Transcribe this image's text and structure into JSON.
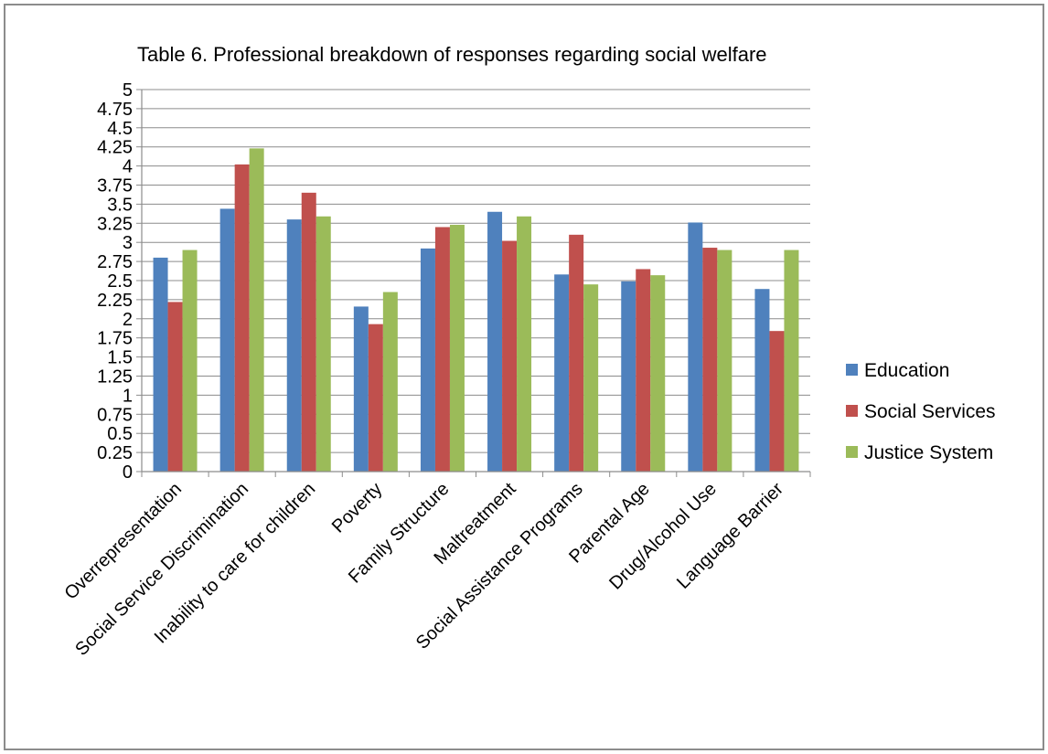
{
  "chart_data": {
    "type": "bar",
    "title": "Table 6.  Professional breakdown of responses regarding social welfare",
    "categories": [
      "Overrepresentation",
      "Social Service Discrimination",
      "Inability to care for children",
      "Poverty",
      "Family Structure",
      "Maltreatment",
      "Social Assistance Programs",
      "Parental Age",
      "Drug/Alcohol Use",
      "Language Barrier"
    ],
    "series": [
      {
        "name": "Education",
        "values": [
          2.8,
          3.44,
          3.3,
          2.16,
          2.92,
          3.4,
          2.58,
          2.49,
          3.26,
          2.39
        ]
      },
      {
        "name": "Social Services",
        "values": [
          2.22,
          4.02,
          3.65,
          1.93,
          3.2,
          3.02,
          3.1,
          2.65,
          2.93,
          1.84
        ]
      },
      {
        "name": "Justice System",
        "values": [
          2.9,
          4.23,
          3.34,
          2.35,
          3.23,
          3.34,
          2.45,
          2.57,
          2.9,
          2.9
        ]
      }
    ],
    "colors": [
      "#4F81BD",
      "#C0504D",
      "#9BBB59"
    ],
    "ylim": [
      0,
      5
    ],
    "yticks": [
      "0",
      "0.25",
      "0.5",
      "0.75",
      "1",
      "1.25",
      "1.5",
      "1.75",
      "2",
      "2.25",
      "2.5",
      "2.75",
      "3",
      "3.25",
      "3.5",
      "3.75",
      "4",
      "4.25",
      "4.5",
      "4.75",
      "5"
    ],
    "grid": true,
    "legend_position": "right",
    "xlabel": "",
    "ylabel": ""
  }
}
